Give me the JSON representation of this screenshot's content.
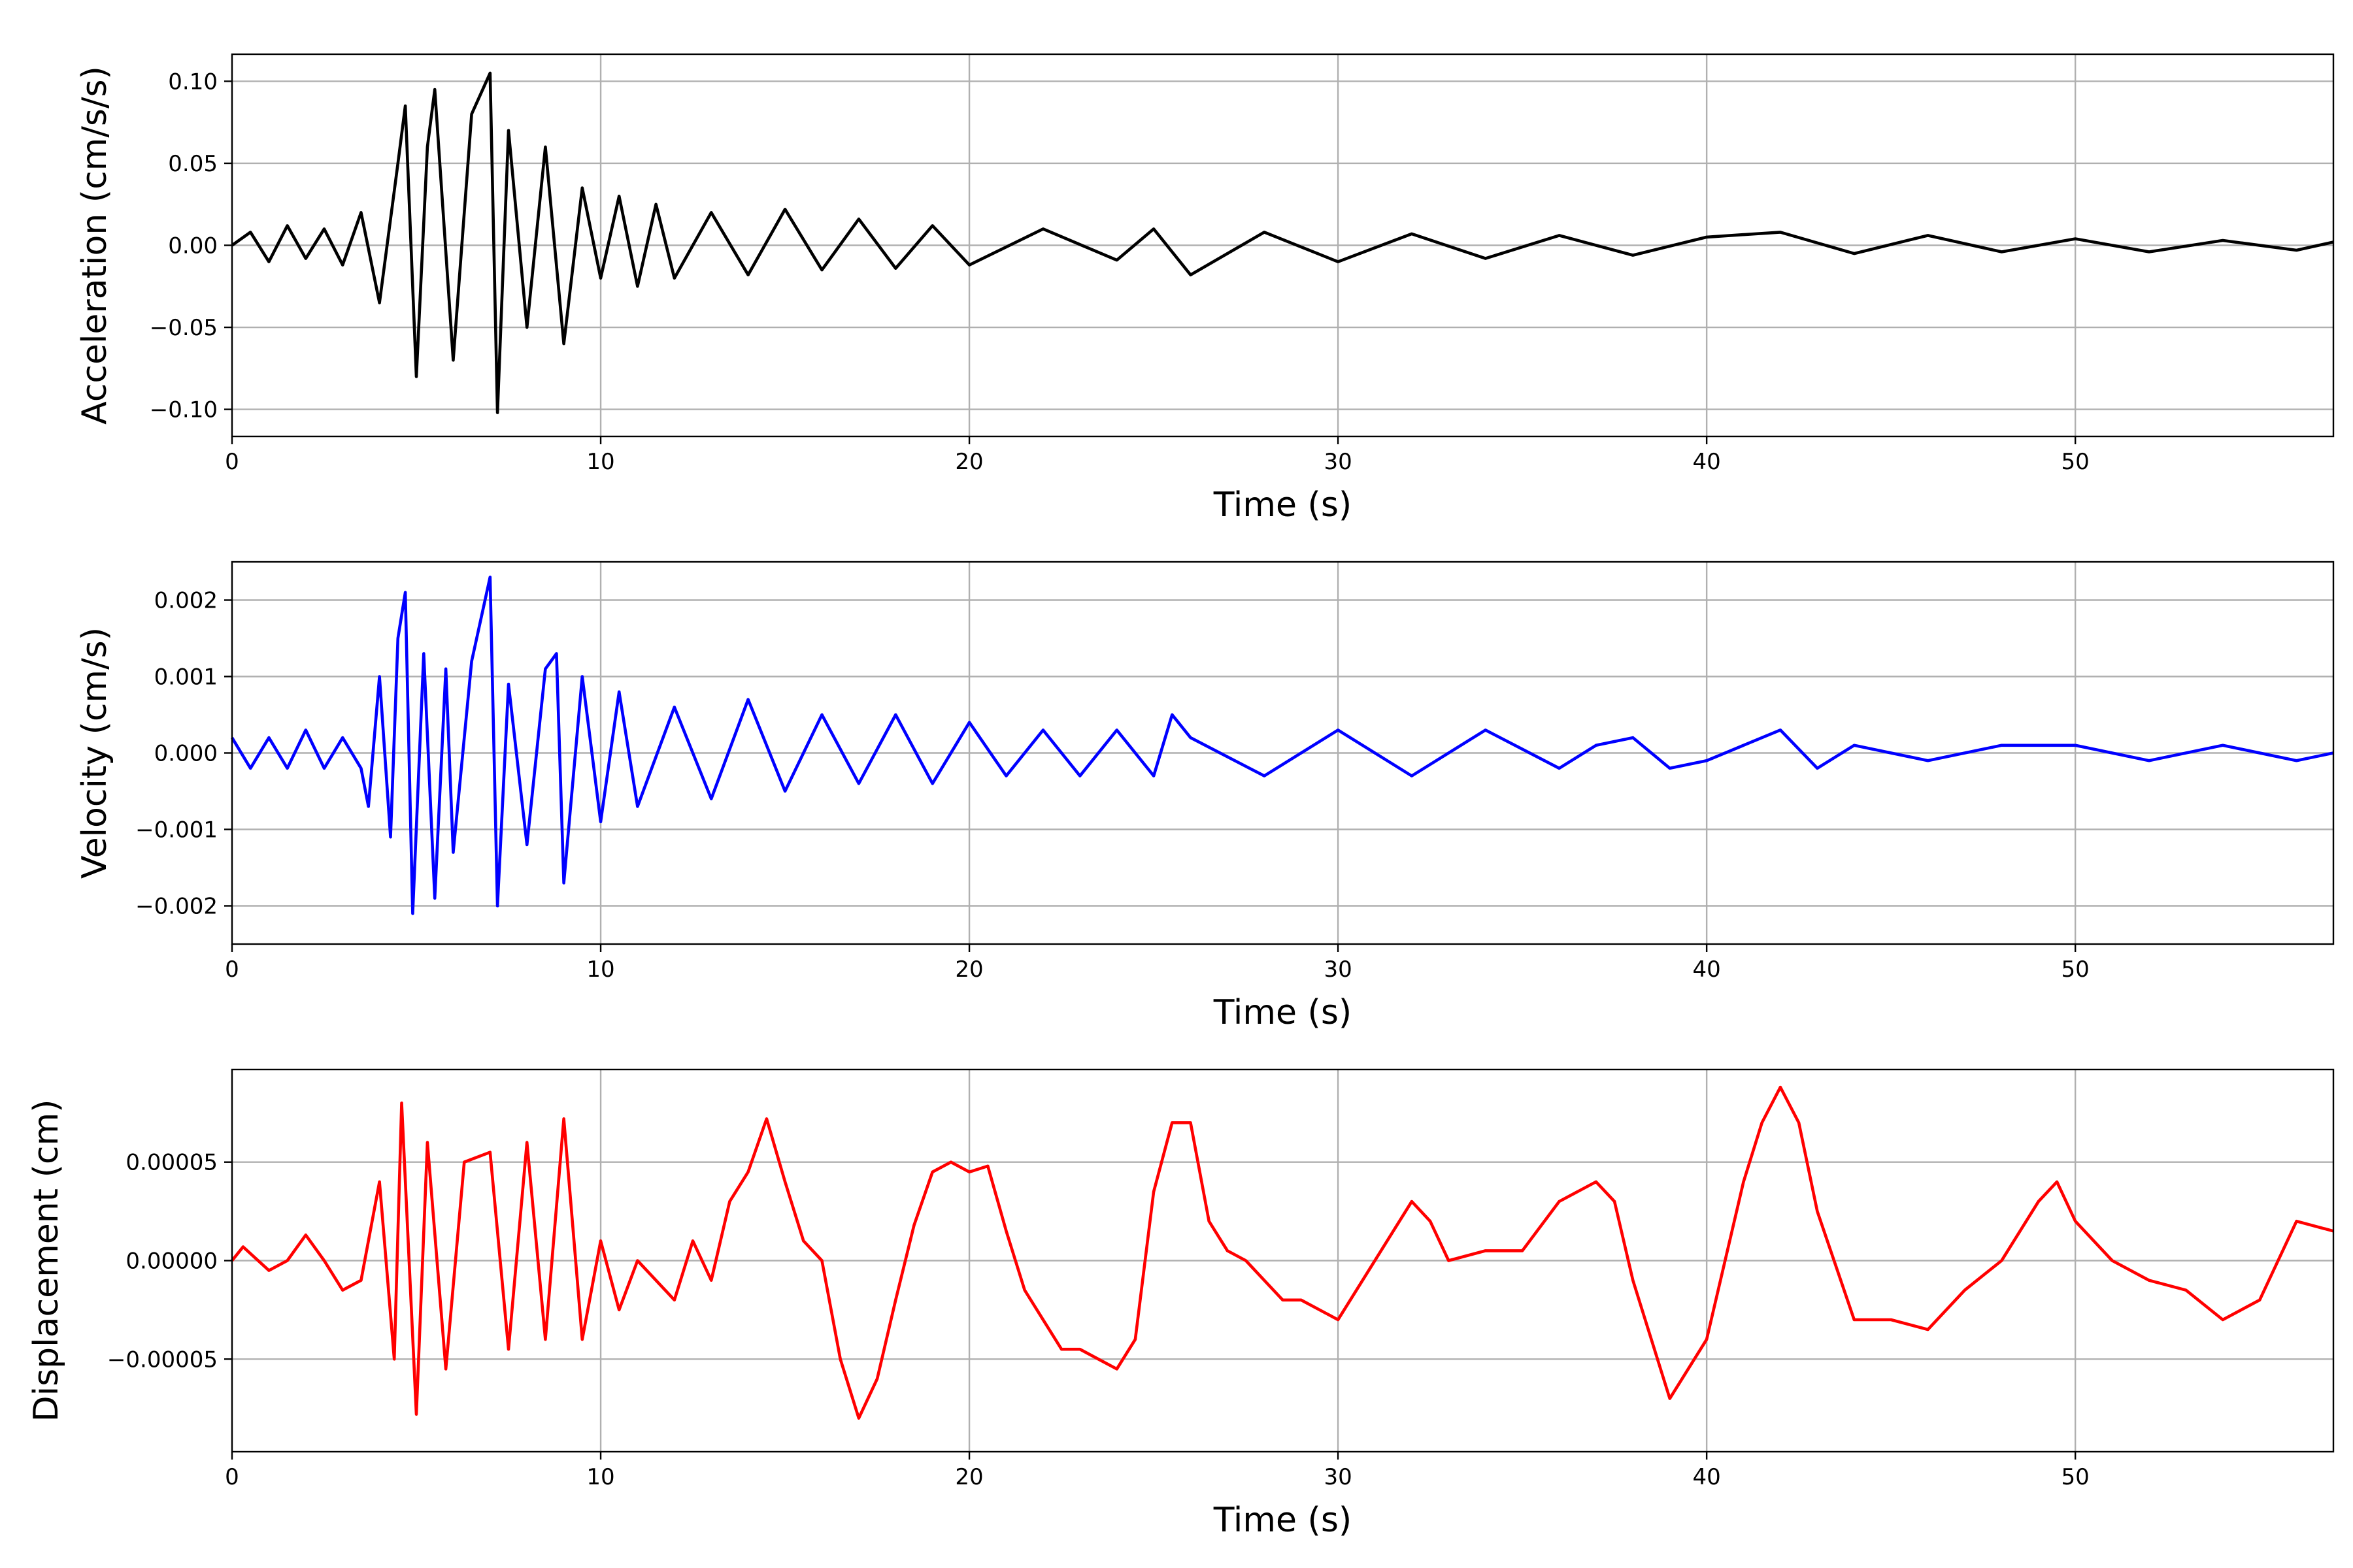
{
  "chart_data": [
    {
      "type": "line",
      "xlabel": "Time (s)",
      "ylabel": "Acceleration (cm/s/s)",
      "xlim": [
        0,
        57
      ],
      "ylim": [
        -0.1165,
        0.1165
      ],
      "xticks": [
        0,
        10,
        20,
        30,
        40,
        50
      ],
      "xtick_labels": [
        "0",
        "10",
        "20",
        "30",
        "40",
        "50"
      ],
      "yticks": [
        0.1,
        0.05,
        0.0,
        -0.05,
        -0.1
      ],
      "ytick_labels": [
        "0.10",
        "0.05",
        "0.00",
        "−0.05",
        "−0.10"
      ],
      "grid": true,
      "color": "#000000",
      "series": [
        {
          "x": [
            0,
            0.5,
            1,
            1.5,
            2,
            2.5,
            3,
            3.5,
            4,
            4.5,
            4.7,
            5,
            5.3,
            5.5,
            6,
            6.5,
            7,
            7.2,
            7.5,
            8,
            8.5,
            9,
            9.5,
            10,
            10.5,
            11,
            11.5,
            12,
            13,
            14,
            15,
            16,
            17,
            18,
            19,
            20,
            22,
            24,
            25,
            26,
            28,
            30,
            32,
            34,
            36,
            38,
            40,
            42,
            44,
            46,
            48,
            50,
            52,
            54,
            56,
            57
          ],
          "y": [
            0.0,
            0.008,
            -0.01,
            0.012,
            -0.008,
            0.01,
            -0.012,
            0.02,
            -0.035,
            0.05,
            0.085,
            -0.08,
            0.06,
            0.095,
            -0.07,
            0.08,
            0.105,
            -0.102,
            0.07,
            -0.05,
            0.06,
            -0.06,
            0.035,
            -0.02,
            0.03,
            -0.025,
            0.025,
            -0.02,
            0.02,
            -0.018,
            0.022,
            -0.015,
            0.016,
            -0.014,
            0.012,
            -0.012,
            0.01,
            -0.009,
            0.01,
            -0.018,
            0.008,
            -0.01,
            0.007,
            -0.008,
            0.006,
            -0.006,
            0.005,
            0.008,
            -0.005,
            0.006,
            -0.004,
            0.004,
            -0.004,
            0.003,
            -0.003,
            0.002
          ]
        }
      ]
    },
    {
      "type": "line",
      "xlabel": "Time (s)",
      "ylabel": "Velocity (cm/s)",
      "xlim": [
        0,
        57
      ],
      "ylim": [
        -0.0025,
        0.0025
      ],
      "xticks": [
        0,
        10,
        20,
        30,
        40,
        50
      ],
      "xtick_labels": [
        "0",
        "10",
        "20",
        "30",
        "40",
        "50"
      ],
      "yticks": [
        0.002,
        0.001,
        0.0,
        -0.001,
        -0.002
      ],
      "ytick_labels": [
        "0.002",
        "0.001",
        "0.000",
        "−0.001",
        "−0.002"
      ],
      "grid": true,
      "color": "#0000ff",
      "series": [
        {
          "x": [
            0,
            0.5,
            1,
            1.5,
            2,
            2.5,
            3,
            3.5,
            3.7,
            4,
            4.3,
            4.5,
            4.7,
            4.9,
            5.2,
            5.5,
            5.8,
            6,
            6.5,
            7,
            7.2,
            7.5,
            8,
            8.5,
            8.8,
            9,
            9.5,
            10,
            10.5,
            11,
            12,
            13,
            14,
            15,
            16,
            17,
            18,
            19,
            20,
            21,
            22,
            23,
            24,
            25,
            25.5,
            26,
            28,
            30,
            32,
            34,
            36,
            37,
            38,
            39,
            40,
            41,
            42,
            43,
            44,
            46,
            48,
            50,
            52,
            54,
            56,
            57
          ],
          "y": [
            0.0002,
            -0.0002,
            0.0002,
            -0.0002,
            0.0003,
            -0.0002,
            0.0002,
            -0.0002,
            -0.0007,
            0.001,
            -0.0011,
            0.0015,
            0.0021,
            -0.0021,
            0.0013,
            -0.0019,
            0.0011,
            -0.0013,
            0.0012,
            0.0023,
            -0.002,
            0.0009,
            -0.0012,
            0.0011,
            0.0013,
            -0.0017,
            0.001,
            -0.0009,
            0.0008,
            -0.0007,
            0.0006,
            -0.0006,
            0.0007,
            -0.0005,
            0.0005,
            -0.0004,
            0.0005,
            -0.0004,
            0.0004,
            -0.0003,
            0.0003,
            -0.0003,
            0.0003,
            -0.0003,
            0.0005,
            0.0002,
            -0.0003,
            0.0003,
            -0.0003,
            0.0003,
            -0.0002,
            0.0001,
            0.0002,
            -0.0002,
            -0.0001,
            0.0001,
            0.0003,
            -0.0002,
            0.0001,
            -0.0001,
            0.0001,
            0.0001,
            -0.0001,
            0.0001,
            -0.0001,
            0.0
          ]
        }
      ]
    },
    {
      "type": "line",
      "xlabel": "Time (s)",
      "ylabel": "Displacement (cm)",
      "xlim": [
        0,
        57
      ],
      "ylim": [
        -9.7e-05,
        9.7e-05
      ],
      "xticks": [
        0,
        10,
        20,
        30,
        40,
        50
      ],
      "xtick_labels": [
        "0",
        "10",
        "20",
        "30",
        "40",
        "50"
      ],
      "yticks": [
        5e-05,
        0.0,
        -5e-05
      ],
      "ytick_labels": [
        "0.00005",
        "0.00000",
        "−0.00005"
      ],
      "grid": true,
      "color": "#ff0000",
      "series": [
        {
          "x": [
            0,
            0.3,
            1,
            1.5,
            2,
            2.5,
            3,
            3.5,
            4,
            4.4,
            4.6,
            5,
            5.3,
            5.8,
            6.3,
            7,
            7.5,
            8,
            8.5,
            9,
            9.5,
            10,
            10.5,
            11,
            12,
            12.5,
            13,
            13.5,
            14,
            14.5,
            15,
            15.5,
            16,
            16.5,
            17,
            17.5,
            18,
            18.5,
            19,
            19.5,
            20,
            20.5,
            21,
            21.5,
            22,
            22.5,
            23,
            23.5,
            24,
            24.5,
            25,
            25.5,
            26,
            26.5,
            27,
            27.5,
            28,
            28.5,
            29,
            30,
            31,
            32,
            32.5,
            33,
            34,
            35,
            36,
            37,
            37.5,
            38,
            39,
            40,
            41,
            41.5,
            42,
            42.5,
            43,
            44,
            45,
            46,
            47,
            48,
            49,
            49.5,
            50,
            51,
            52,
            53,
            54,
            55,
            56,
            57
          ],
          "y": [
            0.0,
            7e-06,
            -5e-06,
            0.0,
            1.3e-05,
            0.0,
            -1.5e-05,
            -1e-05,
            4e-05,
            -5e-05,
            8e-05,
            -7.8e-05,
            6e-05,
            -5.5e-05,
            5e-05,
            5.5e-05,
            -4.5e-05,
            6e-05,
            -4e-05,
            7.2e-05,
            -4e-05,
            1e-05,
            -2.5e-05,
            0.0,
            -2e-05,
            1e-05,
            -1e-05,
            3e-05,
            4.5e-05,
            7.2e-05,
            4e-05,
            1e-05,
            0.0,
            -5e-05,
            -8e-05,
            -6e-05,
            -2e-05,
            1.8e-05,
            4.5e-05,
            5e-05,
            4.5e-05,
            4.8e-05,
            1.5e-05,
            -1.5e-05,
            -3e-05,
            -4.5e-05,
            -4.5e-05,
            -5e-05,
            -5.5e-05,
            -4e-05,
            3.5e-05,
            7e-05,
            7e-05,
            2e-05,
            5e-06,
            0.0,
            -1e-05,
            -2e-05,
            -2e-05,
            -3e-05,
            0.0,
            3e-05,
            2e-05,
            0.0,
            5e-06,
            5e-06,
            3e-05,
            4e-05,
            3e-05,
            -1e-05,
            -7e-05,
            -4e-05,
            4e-05,
            7e-05,
            8.8e-05,
            7e-05,
            2.5e-05,
            -3e-05,
            -3e-05,
            -3.5e-05,
            -1.5e-05,
            0.0,
            3e-05,
            4e-05,
            2e-05,
            0.0,
            -1e-05,
            -1.5e-05,
            -3e-05,
            -2e-05,
            2e-05,
            1.5e-05
          ]
        }
      ]
    }
  ]
}
